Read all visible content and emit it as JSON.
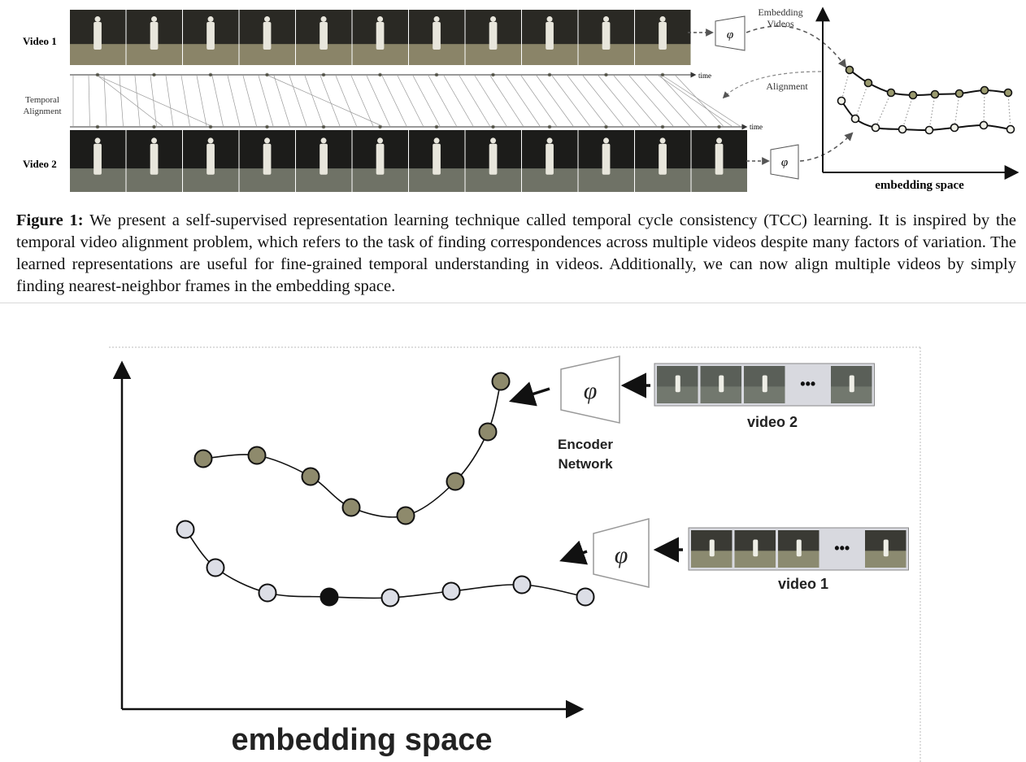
{
  "figure1": {
    "video1_label": "Video 1",
    "video2_label": "Video 2",
    "temporal_label_line1": "Temporal",
    "temporal_label_line2": "Alignment",
    "time_label_1": "time",
    "time_label_2": "time",
    "embedding_label_line1": "Embedding",
    "embedding_label_line2": "Videos",
    "alignment_label": "Alignment",
    "phi": "φ",
    "axis_label": "embedding space",
    "caption_title": "Figure 1:",
    "caption_text": " We present a self-supervised representation learning technique called temporal cycle consistency (TCC) learning. It is inspired by the temporal video alignment problem, which refers to the task of finding correspondences across multiple videos despite many factors of variation. The learned representations are useful for fine-grained temporal understanding in videos. Additionally, we can now align multiple videos by simply finding nearest-neighbor frames in the embedding space.",
    "colors": {
      "frame_dark": "#2c2a24",
      "ground": "#7a7660",
      "dot_fill": "#8a8a6a"
    }
  },
  "figure2": {
    "phi": "φ",
    "encoder_line1": "Encoder",
    "encoder_line2": "Network",
    "video2_label": "video 2",
    "video1_label": "video 1",
    "ellipsis": "•••",
    "axis_label": "embedding space",
    "colors": {
      "video2_dot": "#8e8a6c",
      "video1_dot": "#dcdee6",
      "highlight_dot": "#111111"
    }
  }
}
